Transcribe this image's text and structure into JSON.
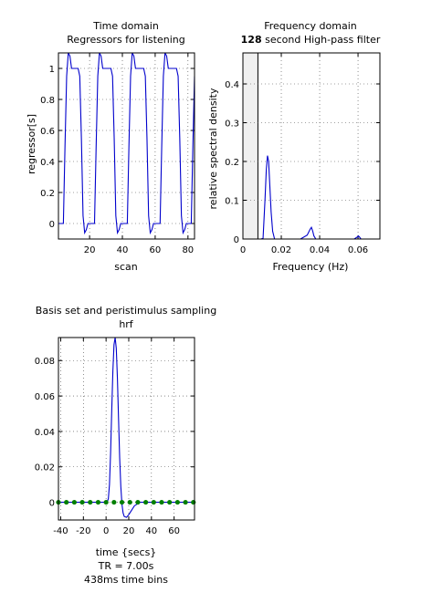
{
  "chart_data": [
    {
      "type": "line",
      "title": "Time domain",
      "subtitle": "Regressors for listening",
      "xlabel": "scan",
      "ylabel": "regressor[s]",
      "xlim": [
        1,
        84
      ],
      "ylim": [
        -0.1,
        1.1
      ],
      "xticks": [
        20,
        40,
        60,
        80
      ],
      "yticks": [
        0,
        0.2,
        0.4,
        0.6,
        0.8,
        1
      ],
      "grid": true,
      "series": [
        {
          "color": "#0000cc",
          "x": [
            1,
            4,
            5,
            6,
            7,
            8,
            9,
            10,
            11,
            12,
            13,
            14,
            15,
            16,
            17,
            18,
            19,
            20,
            21,
            22,
            23,
            24,
            25,
            26,
            27,
            28,
            29,
            30,
            31,
            32,
            33,
            34,
            35,
            36,
            37,
            38,
            39,
            40,
            41,
            42,
            43,
            44,
            45,
            46,
            47,
            48,
            49,
            50,
            51,
            52,
            53,
            54,
            55,
            56,
            57,
            58,
            59,
            60,
            61,
            62,
            63,
            64,
            65,
            66,
            67,
            68,
            69,
            70,
            71,
            72,
            73,
            74,
            75,
            76,
            77,
            78,
            79,
            80,
            81,
            82,
            83,
            84
          ],
          "y": [
            0,
            0,
            0.5,
            0.95,
            1.1,
            1.08,
            1.0,
            1.0,
            1.0,
            1.0,
            1.0,
            0.95,
            0.55,
            0.05,
            -0.06,
            -0.04,
            0.0,
            0.0,
            0.0,
            0.0,
            0.0,
            0.5,
            0.95,
            1.1,
            1.08,
            1.0,
            1.0,
            1.0,
            1.0,
            1.0,
            1.0,
            0.95,
            0.55,
            0.05,
            -0.06,
            -0.04,
            0.0,
            0.0,
            0.0,
            0.0,
            0.0,
            0.5,
            0.95,
            1.1,
            1.08,
            1.0,
            1.0,
            1.0,
            1.0,
            1.0,
            1.0,
            0.95,
            0.55,
            0.05,
            -0.06,
            -0.04,
            0.0,
            0.0,
            0.0,
            0.0,
            0.0,
            0.5,
            0.95,
            1.1,
            1.08,
            1.0,
            1.0,
            1.0,
            1.0,
            1.0,
            1.0,
            0.95,
            0.55,
            0.05,
            -0.06,
            -0.04,
            0.0,
            0.0,
            0.0,
            0.0,
            0.5,
            0.95
          ]
        }
      ]
    },
    {
      "type": "line",
      "title": "Frequency domain",
      "subtitle_bold": "128",
      "subtitle_rest": " second High-pass filter",
      "xlabel": "Frequency (Hz)",
      "ylabel": "relative spectral density",
      "xlim": [
        0,
        0.0714
      ],
      "ylim": [
        0,
        0.48
      ],
      "xticks": [
        0,
        0.02,
        0.04,
        0.06
      ],
      "ytick_values": [
        0,
        0.1,
        0.2,
        0.3,
        0.4
      ],
      "yticks": [
        "0",
        "0.1",
        "0.2",
        "0.3",
        "0.4"
      ],
      "grid": true,
      "highpass_cutoff": 0.0078125,
      "series": [
        {
          "color": "#0000cc",
          "x": [
            0.0,
            0.0095,
            0.0105,
            0.0115,
            0.0122,
            0.0128,
            0.0134,
            0.014,
            0.0147,
            0.0155,
            0.0165,
            0.02,
            0.03,
            0.0335,
            0.035,
            0.0357,
            0.0364,
            0.037,
            0.038,
            0.045,
            0.058,
            0.0596,
            0.0602,
            0.0608,
            0.0615,
            0.0714
          ],
          "y": [
            0.0,
            0.0,
            0.002,
            0.1,
            0.18,
            0.215,
            0.2,
            0.14,
            0.07,
            0.02,
            0.0,
            0.0,
            0.0,
            0.01,
            0.025,
            0.03,
            0.02,
            0.008,
            0.0,
            0.0,
            0.0,
            0.005,
            0.008,
            0.005,
            0.0,
            0.0
          ]
        }
      ]
    },
    {
      "type": "line",
      "title": "Basis set and peristimulus sampling",
      "subtitle": "hrf",
      "xlabel": "time {secs}",
      "notes": [
        "TR = 7.00s",
        "438ms time bins"
      ],
      "xlim": [
        -42,
        78
      ],
      "ylim": [
        -0.01,
        0.093
      ],
      "xticks": [
        -40,
        -20,
        0,
        20,
        40,
        60
      ],
      "yticks": [
        0,
        0.02,
        0.04,
        0.06,
        0.08
      ],
      "grid": true,
      "series": [
        {
          "color": "#0000cc",
          "x": [
            -42,
            0,
            1,
            2,
            3,
            4,
            5,
            6,
            7,
            8,
            9,
            10,
            11,
            12,
            13,
            14,
            15,
            16,
            18,
            20,
            22,
            25,
            30,
            78
          ],
          "y": [
            0,
            0,
            0.0002,
            0.002,
            0.01,
            0.028,
            0.052,
            0.074,
            0.089,
            0.093,
            0.087,
            0.07,
            0.047,
            0.025,
            0.009,
            -0.001,
            -0.006,
            -0.008,
            -0.0085,
            -0.007,
            -0.005,
            -0.002,
            0,
            0
          ]
        }
      ],
      "sampling_points": {
        "color": "#007f00",
        "x": [
          -42,
          -35,
          -28,
          -21,
          -14,
          -7,
          0,
          7,
          14,
          21,
          28,
          35,
          42,
          49,
          56,
          63,
          70,
          77
        ],
        "y": 0
      }
    }
  ]
}
